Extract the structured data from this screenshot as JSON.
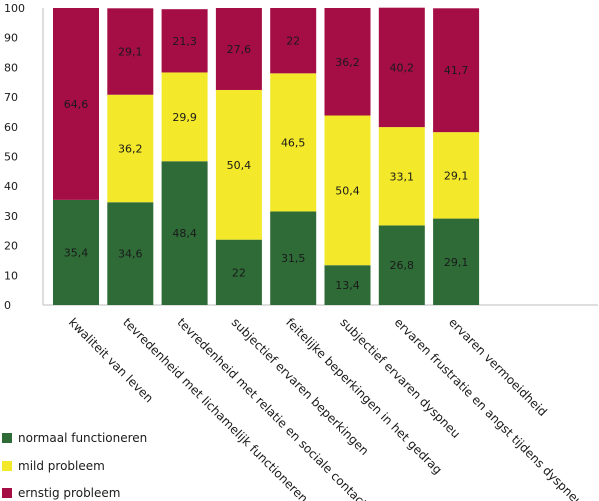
{
  "chart_data": {
    "type": "bar",
    "stacked": true,
    "categories": [
      "kwaliteit van leven",
      "tevredenheid met lichamelijk functioneren",
      "tevredenheid met relatie en sociale contacten",
      "subjectief ervaren beperkingen",
      "feitelijke beperkingen in het gedrag",
      "subjectief ervaren dyspneu",
      "ervaren frustratie en angst tijdens dyspneu",
      "ervaren vermoeidheid"
    ],
    "series": [
      {
        "name": "normaal functioneren",
        "color": "#2e6b37",
        "values": [
          35.4,
          34.6,
          48.4,
          22,
          31.5,
          13.4,
          26.8,
          29.1
        ],
        "labels": [
          "35,4",
          "34,6",
          "48,4",
          "22",
          "31,5",
          "13,4",
          "26,8",
          "29,1"
        ]
      },
      {
        "name": "mild probleem",
        "color": "#f3e92a",
        "values": [
          0,
          36.2,
          29.9,
          50.4,
          46.5,
          50.4,
          33.1,
          29.1
        ],
        "labels": [
          "",
          "36,2",
          "29,9",
          "50,4",
          "46,5",
          "50,4",
          "33,1",
          "29,1"
        ]
      },
      {
        "name": "ernstig probleem",
        "color": "#a50d45",
        "values": [
          64.6,
          29.1,
          21.3,
          27.6,
          22,
          36.2,
          40.2,
          41.7
        ],
        "labels": [
          "64,6",
          "29,1",
          "21,3",
          "27,6",
          "22",
          "36,2",
          "40,2",
          "41,7"
        ]
      }
    ],
    "ylim": [
      0,
      100
    ],
    "yticks": [
      "0",
      "10",
      "20",
      "30",
      "40",
      "50",
      "60",
      "70",
      "80",
      "90",
      "100"
    ],
    "xlabel": "",
    "ylabel": "",
    "grid": false,
    "legend_position": "bottom-left"
  }
}
